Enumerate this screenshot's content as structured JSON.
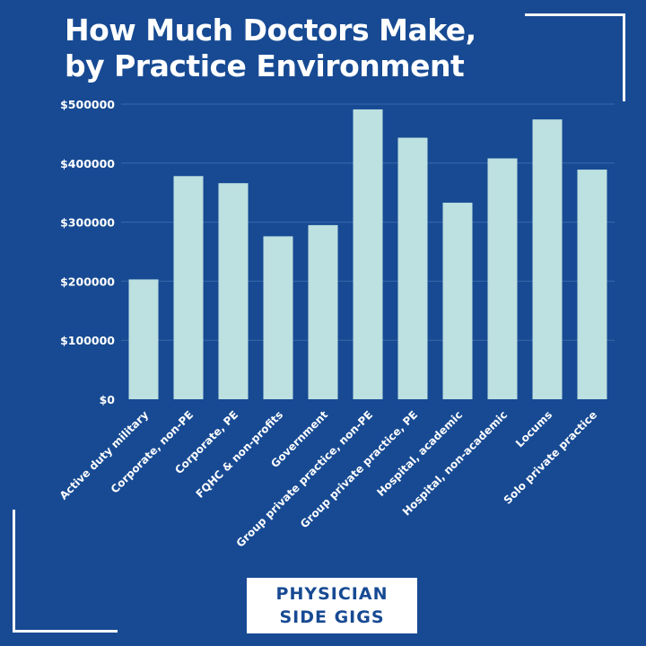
{
  "title": {
    "line1": "How Much Doctors Make,",
    "line2": "by Practice Environment"
  },
  "brand": {
    "line1": "PHYSICIAN",
    "line2": "SIDE GIGS"
  },
  "colors": {
    "background": "#174a93",
    "bar": "#bde0e0",
    "text": "#ffffff",
    "gridline": "#3a67a8"
  },
  "chart_data": {
    "type": "bar",
    "title": "How Much Doctors Make, by Practice Environment",
    "xlabel": "",
    "ylabel": "",
    "ylim": [
      0,
      500000
    ],
    "yticks": [
      {
        "value": 0,
        "label": "$0"
      },
      {
        "value": 100000,
        "label": "$100000"
      },
      {
        "value": 200000,
        "label": "$200000"
      },
      {
        "value": 300000,
        "label": "$300000"
      },
      {
        "value": 400000,
        "label": "$400000"
      },
      {
        "value": 500000,
        "label": "$500000"
      }
    ],
    "grid": true,
    "legend": "none",
    "categories": [
      "Active duty military",
      "Corporate, non-PE",
      "Corporate, PE",
      "FQHC & non-profits",
      "Government",
      "Group private practice, non-PE",
      "Group private practice, PE",
      "Hospital, academic",
      "Hospital, non-academic",
      "Locums",
      "Solo private practice"
    ],
    "values": [
      203000,
      378000,
      366000,
      276000,
      295000,
      491000,
      443000,
      333000,
      408000,
      474000,
      389000
    ]
  }
}
